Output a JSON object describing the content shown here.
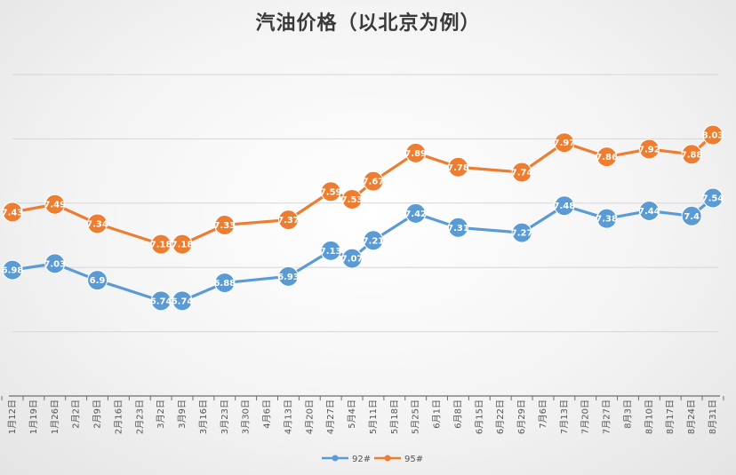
{
  "chart_data": {
    "type": "line",
    "title": "汽油价格（以北京为例）",
    "categories": [
      "1月12日",
      "1月19日",
      "1月26日",
      "2月2日",
      "2月9日",
      "2月16日",
      "2月23日",
      "3月2日",
      "3月9日",
      "3月16日",
      "3月23日",
      "3月30日",
      "4月6日",
      "4月13日",
      "4月20日",
      "4月27日",
      "5月4日",
      "5月11日",
      "5月18日",
      "5月25日",
      "6月1日",
      "6月8日",
      "6月15日",
      "6月22日",
      "6月29日",
      "7月6日",
      "7月13日",
      "7月20日",
      "7月27日",
      "8月3日",
      "8月10日",
      "8月17日",
      "8月24日",
      "8月31日"
    ],
    "x": [
      0,
      2,
      4,
      7,
      8,
      10,
      13,
      15,
      16,
      17,
      19,
      21,
      24,
      26,
      28,
      30,
      32,
      33
    ],
    "series": [
      {
        "name": "92#",
        "color": "#5b9bd5",
        "values": [
          6.98,
          7.03,
          6.9,
          6.74,
          6.74,
          6.88,
          6.93,
          7.13,
          7.07,
          7.21,
          7.42,
          7.31,
          7.27,
          7.48,
          7.38,
          7.44,
          7.4,
          7.54
        ],
        "labels": [
          "6.98",
          "7.03",
          "6.9",
          "6.74",
          "6.74",
          "6.88",
          "6.93",
          "7.13",
          "7.07",
          "7.21",
          "7.42",
          "7.31",
          "7.27",
          "7.48",
          "7.38",
          "7.44",
          "7.4",
          "7.54"
        ]
      },
      {
        "name": "95#",
        "color": "#ed7d31",
        "values": [
          7.43,
          7.49,
          7.34,
          7.18,
          7.18,
          7.33,
          7.37,
          7.59,
          7.53,
          7.67,
          7.89,
          7.78,
          7.74,
          7.97,
          7.86,
          7.92,
          7.88,
          8.03
        ],
        "labels": [
          "7.43",
          "7.49",
          "7.34",
          "7.18",
          "7.18",
          "7.33",
          "7.37",
          "7.59",
          "7.53",
          "7.67",
          "7.89",
          "7.78",
          "7.74",
          "7.97",
          "7.86",
          "7.92",
          "7.88",
          "8.03"
        ]
      }
    ],
    "xlabel": "",
    "ylabel": "",
    "ylim": [
      6.0,
      8.5
    ],
    "grid": true,
    "legend": "bottom"
  }
}
